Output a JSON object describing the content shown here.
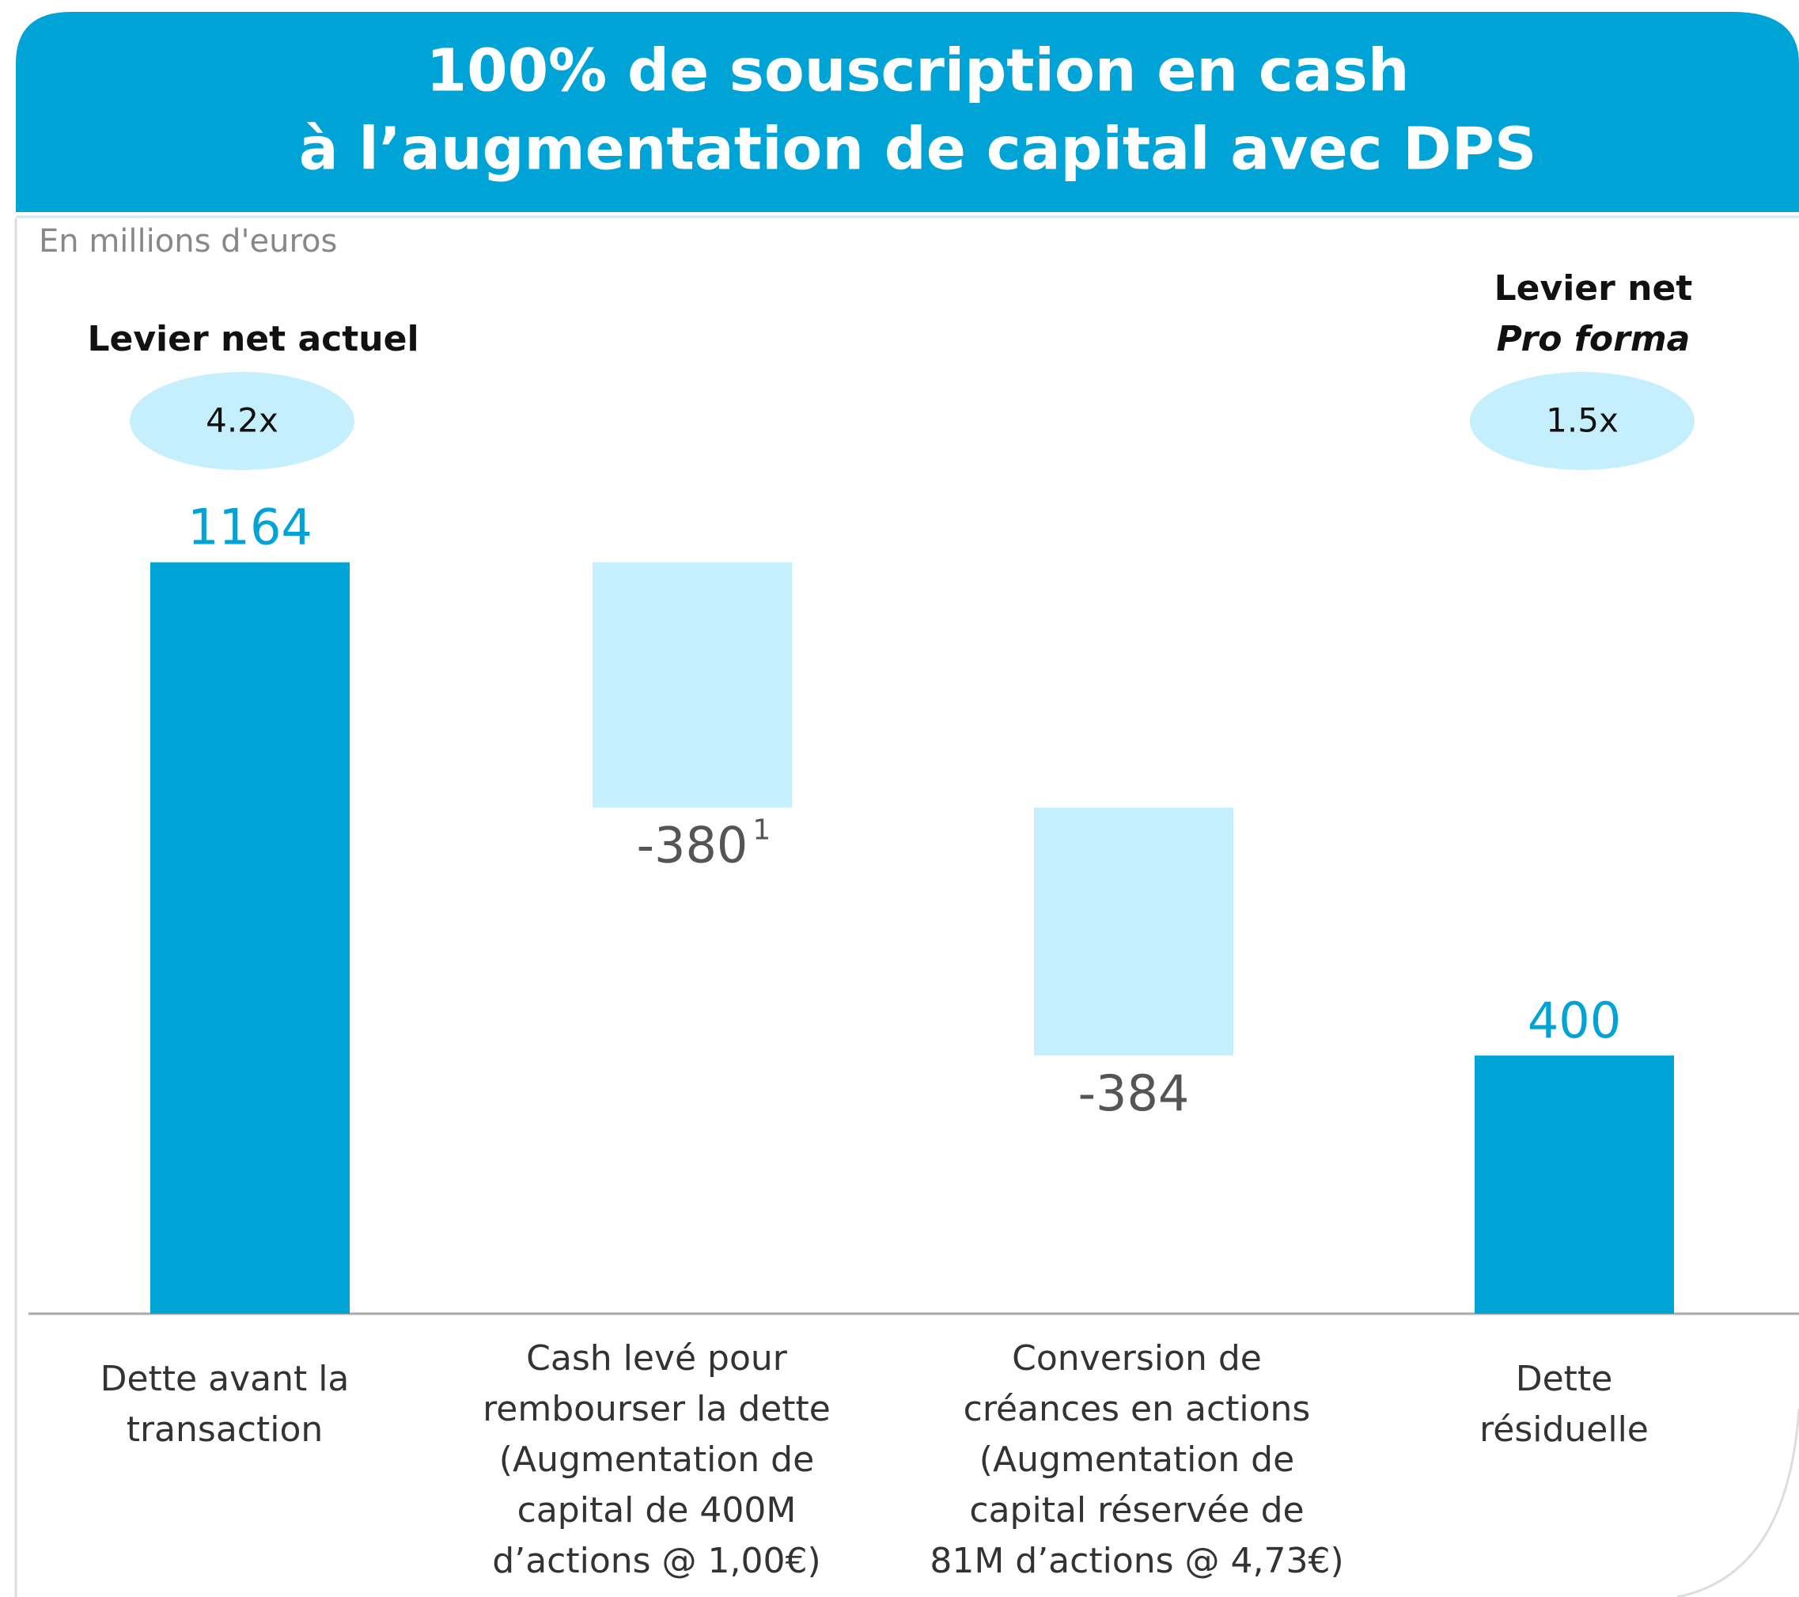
{
  "chart_data": {
    "type": "waterfall",
    "title": [
      "100% de souscription en cash",
      "à l’augmentation de capital avec DPS"
    ],
    "subtitle": "En millions d'euros",
    "categories": [
      [
        "Dette avant la",
        "transaction"
      ],
      [
        "Cash levé pour",
        "rembourser la dette",
        "(Augmentation de",
        "capital de 400M",
        "d’actions @ 1,00€)"
      ],
      [
        "Conversion de",
        "créances en actions",
        "(Augmentation de",
        "capital réservée de",
        "81M d’actions @ 4,73€)"
      ],
      [
        "Dette",
        "résiduelle"
      ]
    ],
    "values": [
      1164,
      -380,
      -384,
      400
    ],
    "is_total": [
      true,
      false,
      false,
      true
    ],
    "superscripts": [
      null,
      "1",
      null,
      null
    ],
    "total_color": "#00a3d6",
    "delta_color": "#c6effd",
    "ylim": [
      0,
      1400
    ],
    "leverage": [
      {
        "title": [
          "Levier net actuel"
        ],
        "value": 4.2,
        "label": "4.2x"
      },
      {
        "title": [
          "Levier net",
          "Pro forma"
        ],
        "value": 1.5,
        "label": "1.5x"
      }
    ]
  }
}
